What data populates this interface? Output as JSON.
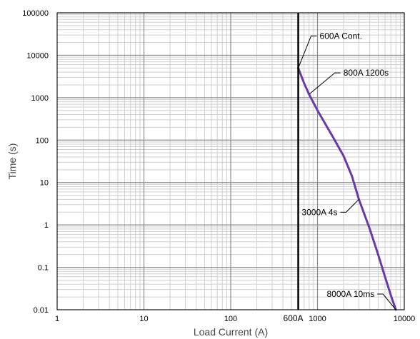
{
  "chart_data": {
    "type": "line",
    "x_scale": "log",
    "y_scale": "log",
    "xlim": [
      1,
      10000
    ],
    "ylim": [
      0.01,
      100000
    ],
    "xlabel": "Load Current (A)",
    "ylabel": "Time (s)",
    "x_ticks": [
      {
        "value": 1,
        "label": "1"
      },
      {
        "value": 10,
        "label": "10"
      },
      {
        "value": 100,
        "label": "100"
      },
      {
        "value": 1000,
        "label": "1000"
      },
      {
        "value": 10000,
        "label": "10000"
      }
    ],
    "y_ticks": [
      {
        "value": 0.01,
        "label": "0.01"
      },
      {
        "value": 0.1,
        "label": "0.1"
      },
      {
        "value": 1,
        "label": "1"
      },
      {
        "value": 10,
        "label": "10"
      },
      {
        "value": 100,
        "label": "100"
      },
      {
        "value": 1000,
        "label": "1000"
      },
      {
        "value": 10000,
        "label": "10000"
      },
      {
        "value": 100000,
        "label": "100000"
      }
    ],
    "grid": true,
    "vertical_marker": {
      "x": 600,
      "label": "600A",
      "color": "#000000"
    },
    "series": [
      {
        "color": "#6a3aa8",
        "points": [
          [
            600,
            5000
          ],
          [
            700,
            2200
          ],
          [
            800,
            1200
          ],
          [
            1000,
            500
          ],
          [
            1500,
            120
          ],
          [
            2000,
            42
          ],
          [
            2500,
            14
          ],
          [
            3000,
            4
          ],
          [
            4000,
            0.8
          ],
          [
            5000,
            0.2
          ],
          [
            6000,
            0.06
          ],
          [
            7000,
            0.022
          ],
          [
            8000,
            0.01
          ]
        ]
      }
    ],
    "annotations": [
      {
        "text": "600A Cont.",
        "x": 600,
        "y": 5000
      },
      {
        "text": "800A 1200s",
        "x": 800,
        "y": 1200
      },
      {
        "text": "3000A 4s",
        "x": 3000,
        "y": 4
      },
      {
        "text": "8000A 10ms",
        "x": 8000,
        "y": 0.01
      }
    ]
  },
  "colors": {
    "major_grid": "#8c8c8c",
    "minor_grid": "#cfcfcf",
    "frame": "#000000"
  }
}
